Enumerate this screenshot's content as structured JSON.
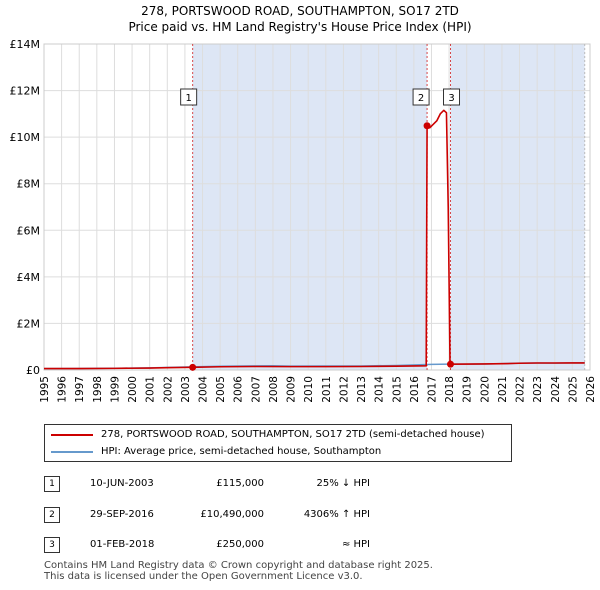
{
  "chart_data": {
    "type": "line",
    "title": "278, PORTSWOOD ROAD, SOUTHAMPTON, SO17 2TD",
    "subtitle": "Price paid vs. HM Land Registry's House Price Index (HPI)",
    "xlabel": "",
    "ylabel": "",
    "xlim": [
      1995,
      2026
    ],
    "ylim": [
      0,
      14000000
    ],
    "x_ticks": [
      "1995",
      "1996",
      "1997",
      "1998",
      "1999",
      "2000",
      "2001",
      "2002",
      "2003",
      "2004",
      "2005",
      "2006",
      "2007",
      "2008",
      "2009",
      "2010",
      "2011",
      "2012",
      "2013",
      "2014",
      "2015",
      "2016",
      "2017",
      "2018",
      "2019",
      "2020",
      "2021",
      "2022",
      "2023",
      "2024",
      "2025",
      "2026"
    ],
    "y_ticks": [
      {
        "value": 0,
        "label": "£0"
      },
      {
        "value": 2000000,
        "label": "£2M"
      },
      {
        "value": 4000000,
        "label": "£4M"
      },
      {
        "value": 6000000,
        "label": "£6M"
      },
      {
        "value": 8000000,
        "label": "£8M"
      },
      {
        "value": 10000000,
        "label": "£10M"
      },
      {
        "value": 12000000,
        "label": "£12M"
      },
      {
        "value": 14000000,
        "label": "£14M"
      }
    ],
    "grid": true,
    "shaded_periods": [
      [
        2003.44,
        2016.75
      ],
      [
        2018.08,
        2025.7
      ]
    ],
    "series": [
      {
        "name": "278, PORTSWOOD ROAD, SOUTHAMPTON, SO17 2TD (semi-detached house)",
        "color": "#cc0000",
        "x": [
          1995,
          1997,
          1999,
          2001,
          2002,
          2003.44,
          2005,
          2007,
          2009,
          2011,
          2013,
          2015,
          2016.7,
          2016.75,
          2016.9,
          2017.1,
          2017.3,
          2017.5,
          2017.7,
          2017.85,
          2017.95,
          2018.05,
          2018.08,
          2019,
          2020,
          2021,
          2022,
          2023,
          2024,
          2025,
          2025.7
        ],
        "values": [
          60000,
          62000,
          70000,
          85000,
          100000,
          115000,
          140000,
          150000,
          145000,
          145000,
          150000,
          165000,
          180000,
          10490000,
          10400000,
          10550000,
          10700000,
          11000000,
          11150000,
          11050000,
          7000000,
          400000,
          250000,
          255000,
          260000,
          270000,
          290000,
          300000,
          300000,
          305000,
          305000
        ]
      },
      {
        "name": "HPI: Average price, semi-detached house, Southampton",
        "color": "#6699cc",
        "x": [
          1995,
          1997,
          1999,
          2001,
          2003,
          2005,
          2007,
          2008,
          2009,
          2011,
          2013,
          2015,
          2016.75,
          2017,
          2018,
          2019,
          2020,
          2021,
          2022,
          2023,
          2024,
          2025,
          2025.7
        ],
        "values": [
          60000,
          64000,
          74000,
          92000,
          128000,
          160000,
          178000,
          185000,
          168000,
          170000,
          172000,
          195000,
          238000,
          243000,
          250000,
          252000,
          256000,
          272000,
          295000,
          300000,
          297000,
          305000,
          305000
        ]
      }
    ],
    "markers": [
      {
        "id": "1",
        "x": 2003.44,
        "value": 115000
      },
      {
        "id": "2",
        "x": 2016.75,
        "value": 10490000
      },
      {
        "id": "3",
        "x": 2018.08,
        "value": 250000
      }
    ]
  },
  "legend": {
    "property_label": "278, PORTSWOOD ROAD, SOUTHAMPTON, SO17 2TD (semi-detached house)",
    "hpi_label": "HPI: Average price, semi-detached house, Southampton",
    "property_color": "#cc0000",
    "hpi_color": "#6699cc"
  },
  "transactions": [
    {
      "id": "1",
      "date": "10-JUN-2003",
      "price": "£115,000",
      "hpi": "25% ↓ HPI"
    },
    {
      "id": "2",
      "date": "29-SEP-2016",
      "price": "£10,490,000",
      "hpi": "4306% ↑ HPI"
    },
    {
      "id": "3",
      "date": "01-FEB-2018",
      "price": "£250,000",
      "hpi": "≈ HPI"
    }
  ],
  "footer": {
    "line1": "Contains HM Land Registry data © Crown copyright and database right 2025.",
    "line2": "This data is licensed under the Open Government Licence v3.0."
  }
}
